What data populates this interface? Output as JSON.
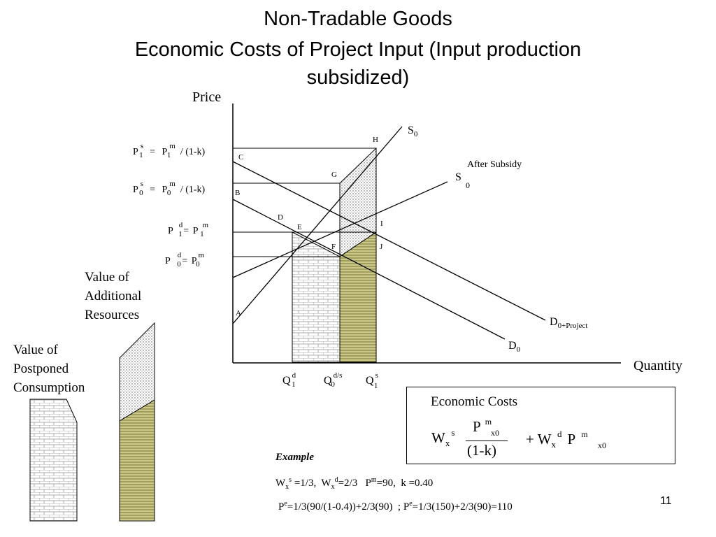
{
  "title": {
    "line1": "Non-Tradable Goods",
    "line2": "Economic Costs of Project Input (Input production",
    "line3": "subsidized)"
  },
  "axes": {
    "y_label": "Price",
    "x_label": "Quantity"
  },
  "price_labels": {
    "p1s": "P s 1 = P m 1 / (1-k)",
    "p0s": "P s 0 = P m 0 / (1-k)",
    "p1d": "P d 1 = P m 1",
    "p0d": "P d 0 = P m 0"
  },
  "points": {
    "A": "A",
    "B": "B",
    "C": "C",
    "D": "D",
    "E": "E",
    "F": "F",
    "G": "G",
    "H": "H",
    "I": "I",
    "J": "J"
  },
  "curves": {
    "s0": "S0",
    "s0_after": "S",
    "s0_after_sub": "0",
    "after_subsidy": "After Subsidy",
    "d0_project": "D0+Project",
    "d0": "D0"
  },
  "quantities": {
    "q1d": "Q d 1",
    "q0ds": "Q d/s 0",
    "q1s": "Q s 1"
  },
  "side_labels": {
    "additional_1": "Value of",
    "additional_2": "Additional",
    "additional_3": "Resources",
    "postponed_1": "Value of",
    "postponed_2": "Postponed",
    "postponed_3": "Consumption"
  },
  "formula_box": {
    "heading": "Economic Costs",
    "formula": "W x s · P m x0 / (1-k) + W x d · P m x0"
  },
  "example": {
    "heading": "Example",
    "line1": "Wx s =1/3,  Wx d=2/3   Pm=90,  k =0.40",
    "line2": "Pe=1/3(90/(1-0.4))+2/3(90)  ; Pe=1/3(150)+2/3(90)=110"
  },
  "page_number": "11",
  "colors": {
    "stripe_fill": "#d8d48a",
    "dot_fill": "#e4e4e4",
    "brick": "#9a9a9a"
  }
}
